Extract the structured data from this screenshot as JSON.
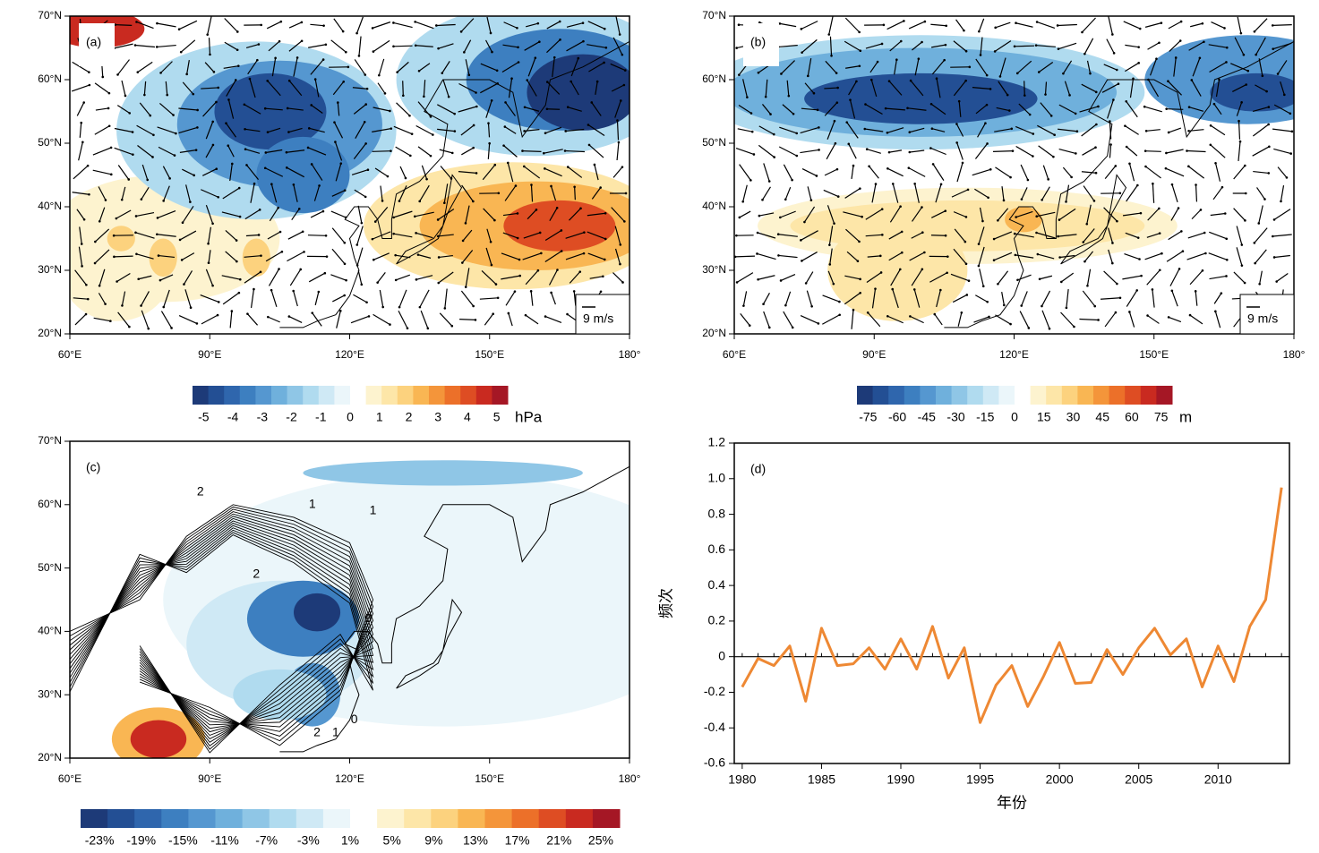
{
  "maps": {
    "palette": [
      "#1d3a78",
      "#234f94",
      "#2f66ad",
      "#3d7fc0",
      "#5597d0",
      "#6fb0dc",
      "#8fc6e6",
      "#b0dbef",
      "#cfe9f5",
      "#ebf6fa",
      "#ffffff",
      "#fdf3cf",
      "#fde6a8",
      "#fcd27e",
      "#f9b653",
      "#f4953a",
      "#ec7029",
      "#de4d23",
      "#c92a20",
      "#a51725"
    ],
    "xticks": [
      {
        "value": 60,
        "label": "60°E"
      },
      {
        "value": 90,
        "label": "90°E"
      },
      {
        "value": 120,
        "label": "120°E"
      },
      {
        "value": 150,
        "label": "150°E"
      },
      {
        "value": 180,
        "label": "180°"
      }
    ],
    "yticks": [
      {
        "value": 20,
        "label": "20°N"
      },
      {
        "value": 30,
        "label": "30°N"
      },
      {
        "value": 40,
        "label": "40°N"
      },
      {
        "value": 50,
        "label": "50°N"
      },
      {
        "value": 60,
        "label": "60°N"
      },
      {
        "value": 70,
        "label": "70°N"
      }
    ],
    "panels": [
      {
        "label": "(a)",
        "reference_vector": "9 m/s",
        "colorbar_ticks": [
          -5,
          -4,
          -3,
          -2,
          -1,
          0,
          1,
          2,
          3,
          4,
          5
        ],
        "colorbar_unit": "hPa"
      },
      {
        "label": "(b)",
        "reference_vector": "9 m/s",
        "colorbar_ticks": [
          -75,
          -60,
          -45,
          -30,
          -15,
          0,
          15,
          30,
          45,
          60,
          75
        ],
        "colorbar_unit": "m"
      },
      {
        "label": "(c)",
        "contour_labels": [
          "1",
          "1",
          "2",
          "2",
          "0",
          "2",
          "1",
          "0"
        ],
        "colorbar_ticks": [
          {
            "value": -23,
            "label": "-23%"
          },
          {
            "value": -19,
            "label": "-19%"
          },
          {
            "value": -15,
            "label": "-15%"
          },
          {
            "value": -11,
            "label": "-11%"
          },
          {
            "value": -7,
            "label": "-7%"
          },
          {
            "value": -3,
            "label": "-3%"
          },
          {
            "value": 1,
            "label": "1%"
          },
          {
            "value": 5,
            "label": "5%"
          },
          {
            "value": 9,
            "label": "9%"
          },
          {
            "value": 13,
            "label": "13%"
          },
          {
            "value": 17,
            "label": "17%"
          },
          {
            "value": 21,
            "label": "21%"
          },
          {
            "value": 25,
            "label": "25%"
          }
        ]
      }
    ]
  },
  "chart_data": {
    "type": "line",
    "panel_label": "(d)",
    "x_label": "年份",
    "y_label": "频次",
    "x": [
      1980,
      1981,
      1982,
      1983,
      1984,
      1985,
      1986,
      1987,
      1988,
      1989,
      1990,
      1991,
      1992,
      1993,
      1994,
      1995,
      1996,
      1997,
      1998,
      1999,
      2000,
      2001,
      2002,
      2003,
      2004,
      2005,
      2006,
      2007,
      2008,
      2009,
      2010,
      2011,
      2012,
      2013,
      2014
    ],
    "series": [
      {
        "name": "频次",
        "color": "#ee8833",
        "values": [
          -0.17,
          -0.01,
          -0.05,
          0.06,
          -0.25,
          0.16,
          -0.05,
          -0.04,
          0.05,
          -0.07,
          0.1,
          -0.07,
          0.17,
          -0.12,
          0.05,
          -0.37,
          -0.16,
          -0.05,
          -0.28,
          -0.11,
          0.08,
          -0.15,
          -0.145,
          0.04,
          -0.1,
          0.05,
          0.16,
          0.01,
          0.1,
          -0.17,
          0.06,
          -0.14,
          0.17,
          0.32,
          0.95
        ]
      }
    ],
    "xlim": [
      1979.5,
      2014.5
    ],
    "ylim": [
      -0.6,
      1.2
    ],
    "xticks": [
      1980,
      1985,
      1990,
      1995,
      2000,
      2005,
      2010
    ],
    "yticks": [
      -0.6,
      -0.4,
      -0.2,
      0,
      0.2,
      0.4,
      0.6,
      0.8,
      {
        "value": 1.0,
        "label": "1.0"
      },
      1.2
    ]
  }
}
